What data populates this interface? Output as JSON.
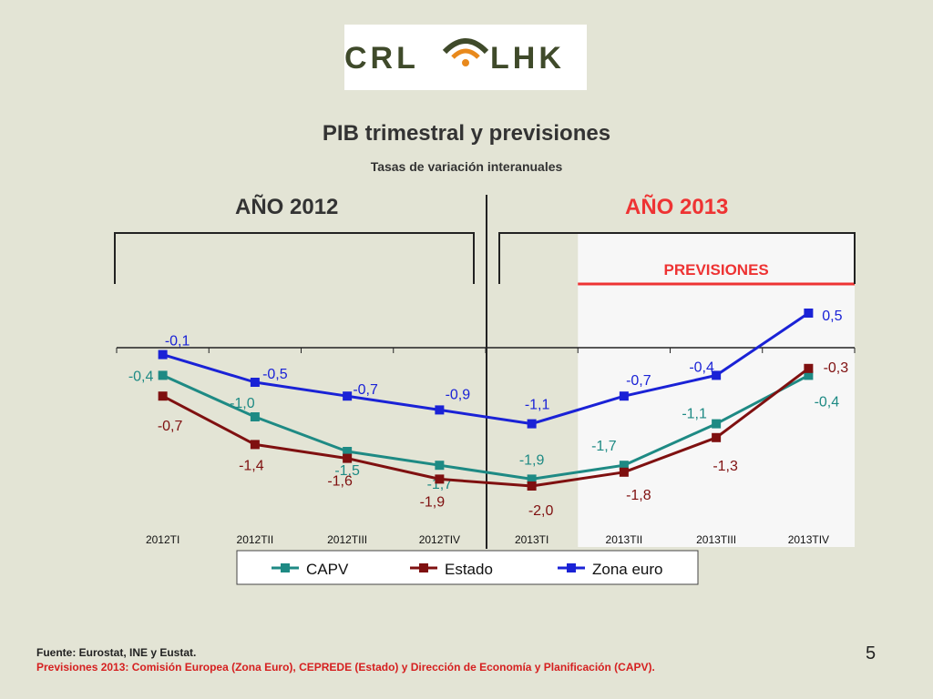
{
  "logo": {
    "left_text": "CRL",
    "right_text": "LHK"
  },
  "slide": {
    "title": "PIB trimestral y previsiones",
    "subtitle": "Tasas de variación interanuales",
    "year_left": "AÑO 2012",
    "year_right": "AÑO 2013",
    "forecast_label": "PREVISIONES",
    "footnote_source": "Fuente: Eurostat, INE y Eustat.",
    "footnote_forecast": "Previsiones 2013: Comisión Europea (Zona Euro), CEPREDE (Estado) y Dirección de Economía y Planificación (CAPV).",
    "page_number": "5"
  },
  "colors": {
    "background": "#e3e4d5",
    "forecast_panel": "#f7f7f7",
    "forecast_line": "#ee3333",
    "year_2013": "#ee3333"
  },
  "chart_data": {
    "type": "line",
    "title": "",
    "xlabel": "",
    "ylabel": "",
    "categories": [
      "2012TI",
      "2012TII",
      "2012TIII",
      "2012TIV",
      "2013TI",
      "2013TII",
      "2013TIII",
      "2013TIV"
    ],
    "ylim": [
      -2.5,
      0.9
    ],
    "grid": false,
    "legend_position": "bottom",
    "forecast_from_index": 5,
    "series": [
      {
        "name": "CAPV",
        "color": "#1e8a84",
        "values": [
          -0.4,
          -1.0,
          -1.5,
          -1.7,
          -1.9,
          -1.7,
          -1.1,
          -0.4
        ],
        "labels": [
          "-0,4",
          "-1,0",
          "-1,5",
          "-1,7",
          "-1,9",
          "-1,7",
          "-1,1",
          "-0,4"
        ]
      },
      {
        "name": "Estado",
        "color": "#7f1010",
        "values": [
          -0.7,
          -1.4,
          -1.6,
          -1.9,
          -2.0,
          -1.8,
          -1.3,
          -0.3
        ],
        "labels": [
          "-0,7",
          "-1,4",
          "-1,6",
          "-1,9",
          "-2,0",
          "-1,8",
          "-1,3",
          "-0,3"
        ]
      },
      {
        "name": "Zona euro",
        "color": "#1a22d6",
        "values": [
          -0.1,
          -0.5,
          -0.7,
          -0.9,
          -1.1,
          -0.7,
          -0.4,
          0.5
        ],
        "labels": [
          "-0,1",
          "-0,5",
          "-0,7",
          "-0,9",
          "-1,1",
          "-0,7",
          "-0,4",
          "0,5"
        ]
      }
    ]
  }
}
